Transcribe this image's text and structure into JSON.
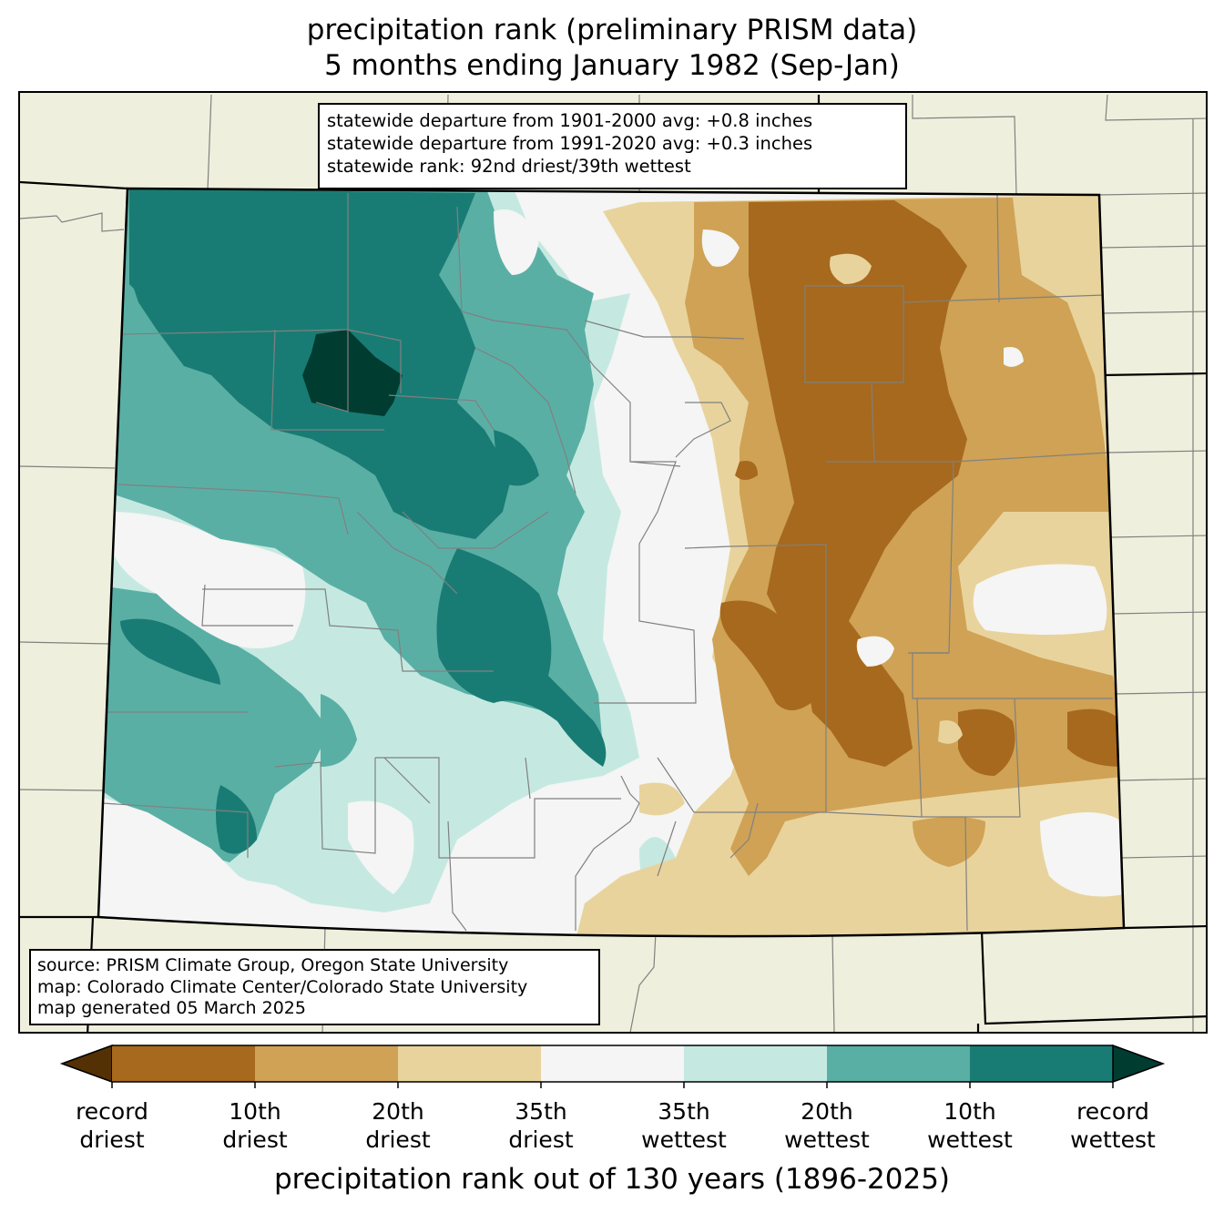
{
  "title": {
    "line1": "precipitation rank (preliminary PRISM data)",
    "line2": "5 months ending January 1982 (Sep-Jan)"
  },
  "stats": {
    "line1": "statewide departure from 1901-2000 avg: +0.8 inches",
    "line2": "statewide departure from 1991-2020 avg: +0.3 inches",
    "line3": "statewide rank: 92nd driest/39th wettest"
  },
  "credits": {
    "line1": "source: PRISM Climate Group, Oregon State University",
    "line2": "map: Colorado Climate Center/Colorado State University",
    "line3": "map generated 05 March 2025"
  },
  "colorbar": {
    "title": "precipitation rank out of 130 years (1896-2025)",
    "labels": [
      {
        "top": "record",
        "bottom": "driest"
      },
      {
        "top": "10th",
        "bottom": "driest"
      },
      {
        "top": "20th",
        "bottom": "driest"
      },
      {
        "top": "35th",
        "bottom": "driest"
      },
      {
        "top": "35th",
        "bottom": "wettest"
      },
      {
        "top": "20th",
        "bottom": "wettest"
      },
      {
        "top": "10th",
        "bottom": "wettest"
      },
      {
        "top": "record",
        "bottom": "wettest"
      }
    ],
    "colors": {
      "extend_driest": "#543005",
      "record_to_10th_driest": "#a6691d",
      "10th_to_20th_driest": "#cfa255",
      "20th_to_35th_driest": "#e9d39d",
      "near_normal": "#f4f5f4",
      "20th_to_35th_wettest": "#c5e9e1",
      "10th_to_20th_wettest": "#5aafa5",
      "record_to_10th_wettest": "#197c74",
      "extend_wettest": "#013c30"
    }
  },
  "map": {
    "background": "#efefdd",
    "state_border": "#000000",
    "county_lines": "#808080"
  }
}
